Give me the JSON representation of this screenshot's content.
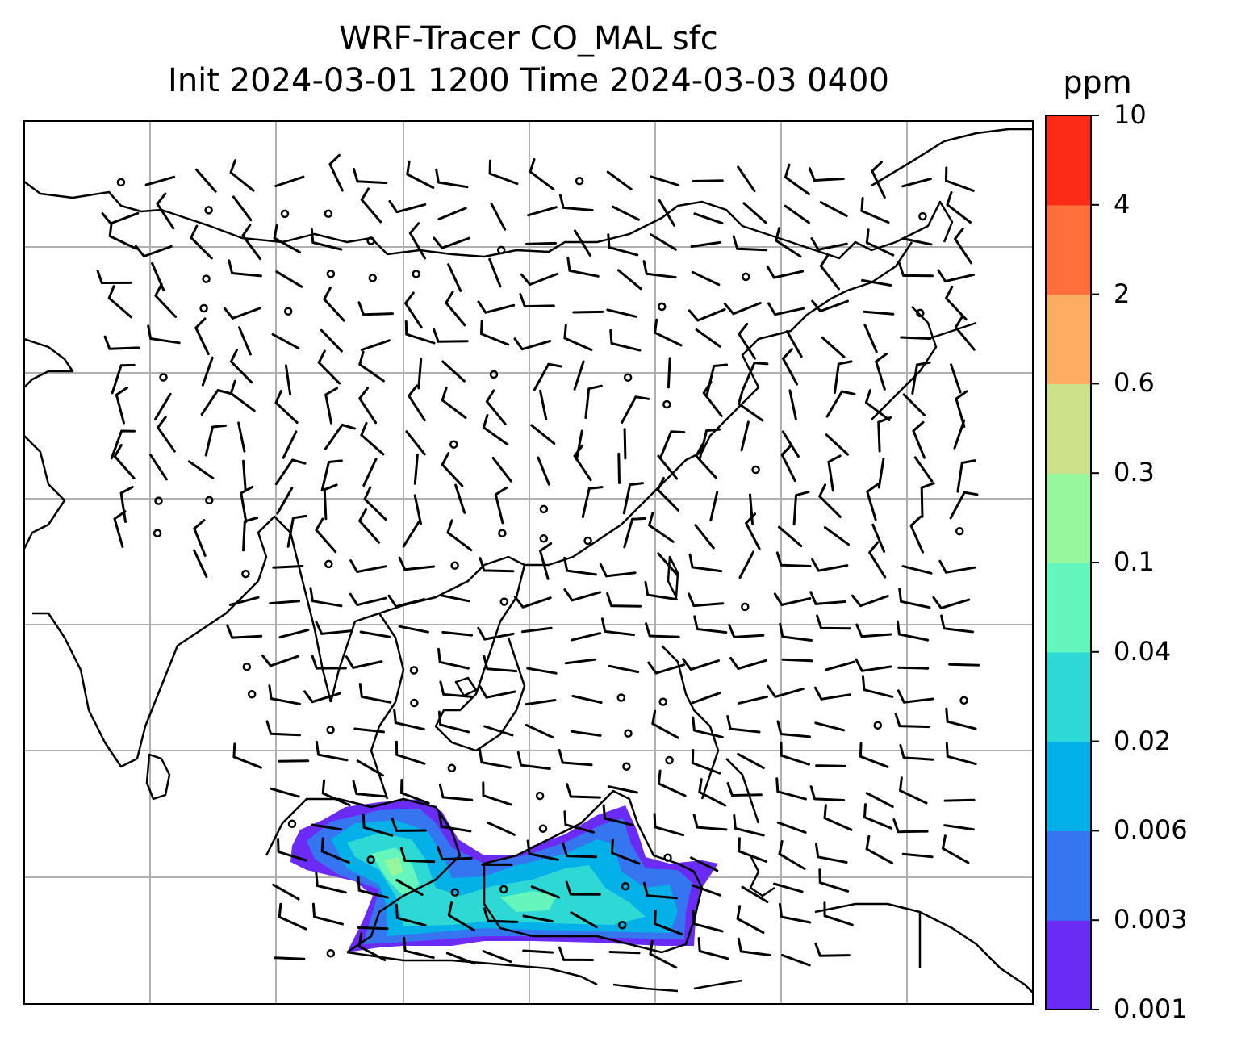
{
  "title": {
    "line1": "WRF-Tracer CO_MAL sfc",
    "line2": "Init 2024-03-01 1200 Time 2024-03-03 0400"
  },
  "map": {
    "projection": "lat-lon (PlateCarree)",
    "gridlines": true,
    "coastlines": true,
    "wind_barbs": true,
    "colors": {
      "coastline": "#000000",
      "gridline": "#b0b0b0",
      "barb": "#000000"
    },
    "tracer_field": {
      "variable": "CO_MAL",
      "level": "sfc",
      "region": "Malaysia / Borneo / Sumatra plume"
    }
  },
  "colorbar": {
    "unit": "ppm",
    "tick_labels": [
      "0.001",
      "0.003",
      "0.006",
      "0.02",
      "0.04",
      "0.1",
      "0.3",
      "0.6",
      "2",
      "4",
      "10"
    ],
    "colors": [
      "#6a2cf5",
      "#3576f0",
      "#03b0e8",
      "#2ed8d5",
      "#64f6bd",
      "#97f79c",
      "#cde08a",
      "#fcad61",
      "#fe6f3c",
      "#fb2b17"
    ]
  }
}
